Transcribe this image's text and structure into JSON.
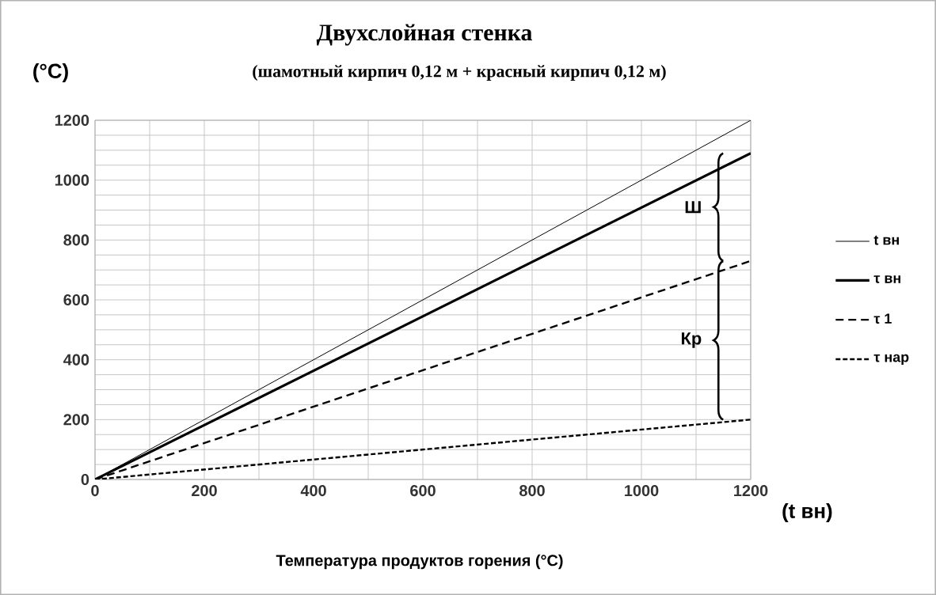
{
  "chart_data": {
    "type": "line",
    "title": "Двухслойная   стенка",
    "subtitle": "(шамотный кирпич 0,12 м + красный  кирпич 0,12 м)",
    "xlabel": "Температура   продуктов   горения (°C)",
    "ylabel": "(°C)",
    "x": [
      0,
      1200
    ],
    "xlim": [
      0,
      1200
    ],
    "ylim": [
      0,
      1200
    ],
    "xticks": [
      0,
      200,
      400,
      600,
      800,
      1000,
      1200
    ],
    "yticks": [
      0,
      200,
      400,
      600,
      800,
      1000,
      1200
    ],
    "grid": true,
    "legend": "right",
    "series": [
      {
        "name": "t вн",
        "color": "#000000",
        "line_style": "solid",
        "values": [
          0,
          1200
        ]
      },
      {
        "name": "τ вн",
        "color": "#000000",
        "line_style": "solid",
        "values": [
          0,
          1090
        ]
      },
      {
        "name": "τ 1",
        "color": "#000000",
        "line_style": "dashed",
        "values": [
          0,
          730
        ]
      },
      {
        "name": "τ нар",
        "color": "#000000",
        "line_style": "dotted",
        "values": [
          0,
          200
        ]
      }
    ],
    "annotations": [
      "(t вн)",
      "Ш",
      "Кр"
    ]
  }
}
